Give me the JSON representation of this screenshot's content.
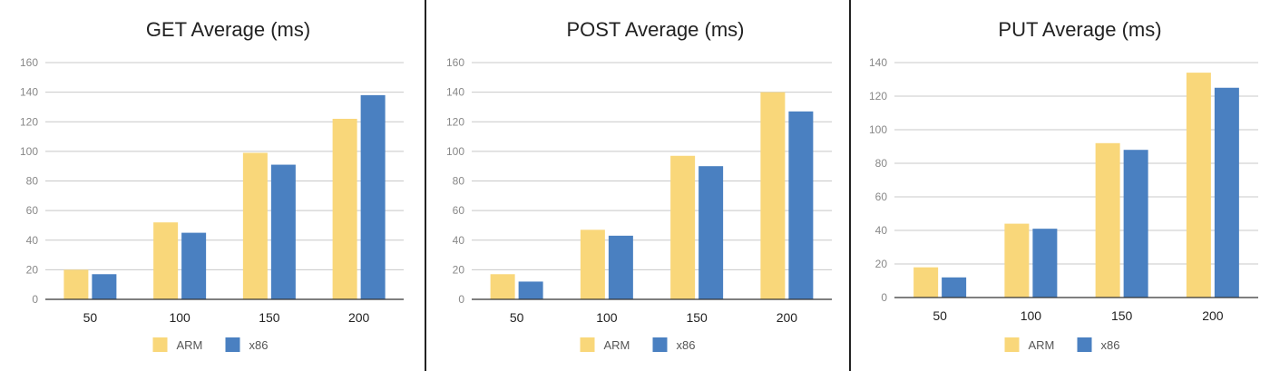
{
  "colors": {
    "ARM": "#F9D77A",
    "x86": "#4A80C1"
  },
  "chart_data": [
    {
      "type": "bar",
      "title": "GET Average (ms)",
      "categories": [
        "50",
        "100",
        "150",
        "200"
      ],
      "yticks": [
        "0",
        "20",
        "40",
        "60",
        "80",
        "100",
        "120",
        "140",
        "160"
      ],
      "ylim": [
        0,
        160
      ],
      "grid": true,
      "legend": "bottom-center",
      "series": [
        {
          "name": "ARM",
          "values": [
            20,
            52,
            99,
            122
          ]
        },
        {
          "name": "x86",
          "values": [
            17,
            45,
            91,
            138
          ]
        }
      ]
    },
    {
      "type": "bar",
      "title": "POST Average (ms)",
      "categories": [
        "50",
        "100",
        "150",
        "200"
      ],
      "yticks": [
        "0",
        "20",
        "40",
        "60",
        "80",
        "100",
        "120",
        "140",
        "160"
      ],
      "ylim": [
        0,
        160
      ],
      "grid": true,
      "legend": "bottom-center",
      "series": [
        {
          "name": "ARM",
          "values": [
            17,
            47,
            97,
            140
          ]
        },
        {
          "name": "x86",
          "values": [
            12,
            43,
            90,
            127
          ]
        }
      ]
    },
    {
      "type": "bar",
      "title": "PUT Average (ms)",
      "categories": [
        "50",
        "100",
        "150",
        "200"
      ],
      "yticks": [
        "0",
        "20",
        "40",
        "60",
        "80",
        "100",
        "120",
        "140"
      ],
      "ylim": [
        0,
        140
      ],
      "grid": true,
      "legend": "bottom-center",
      "series": [
        {
          "name": "ARM",
          "values": [
            18,
            44,
            92,
            134
          ]
        },
        {
          "name": "x86",
          "values": [
            12,
            41,
            88,
            125
          ]
        }
      ]
    }
  ]
}
